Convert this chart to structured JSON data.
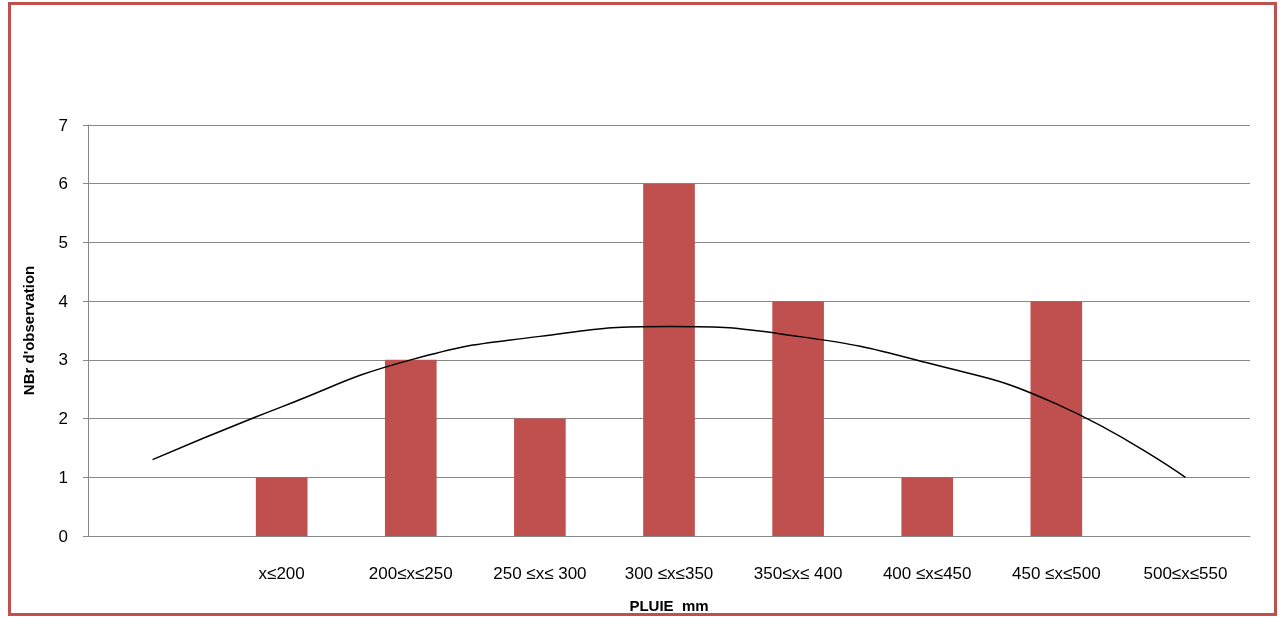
{
  "chart_data": {
    "type": "bar",
    "xlabel": "PLUIE  mm",
    "ylabel": "NBr d'observation",
    "categories": [
      null,
      "x≤200",
      "200≤x≤250",
      "250 ≤x≤ 300",
      "300 ≤x≤350",
      "350≤x≤ 400",
      "400 ≤x≤450",
      "450 ≤x≤500",
      "500≤x≤550"
    ],
    "series": [
      {
        "color": "#c0504d",
        "values": [
          null,
          1,
          3,
          2,
          6,
          4,
          1,
          4,
          null
        ]
      },
      {
        "type": "line",
        "color": "#000000",
        "values": [
          1.3,
          2.2,
          3.0,
          3.4,
          3.57,
          3.4,
          2.95,
          2.25,
          1.0
        ]
      }
    ],
    "ylim": [
      0,
      7
    ],
    "yticks": [
      0,
      1,
      2,
      3,
      4,
      5,
      6,
      7
    ],
    "grid": "y",
    "marker": "none"
  }
}
